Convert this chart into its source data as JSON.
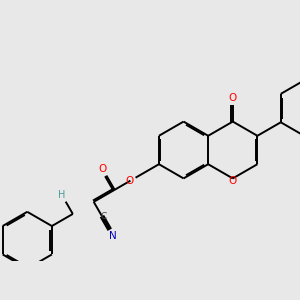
{
  "bg_color": "#e8e8e8",
  "bond_color": "#000000",
  "o_color": "#ff0000",
  "n_color": "#0000bb",
  "h_color": "#4a9a9a",
  "c_color": "#444444",
  "lw": 1.4,
  "dbo": 0.038,
  "figsize": [
    3.0,
    3.0
  ],
  "dpi": 100,
  "xlim": [
    -3.8,
    3.8
  ],
  "ylim": [
    -2.8,
    2.8
  ]
}
